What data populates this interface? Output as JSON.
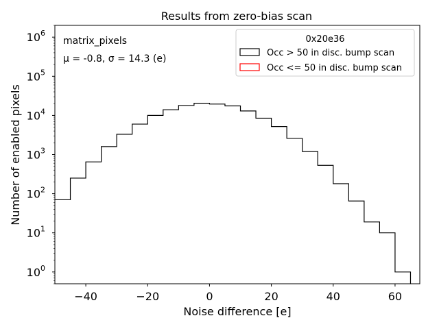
{
  "chart_data": {
    "type": "histogram",
    "title": "Results from zero-bias scan",
    "xlabel": "Noise difference [e]",
    "ylabel": "Number of enabled pixels",
    "xlim": [
      -50,
      68
    ],
    "ylim": [
      0.5,
      2000000
    ],
    "yscale": "log",
    "xticks": [
      -40,
      -20,
      0,
      20,
      40,
      60
    ],
    "xtick_labels": [
      "−40",
      "−20",
      "0",
      "20",
      "40",
      "60"
    ],
    "yticks": [
      {
        "value": 1,
        "base": "10",
        "exp": "0"
      },
      {
        "value": 10,
        "base": "10",
        "exp": "1"
      },
      {
        "value": 100,
        "base": "10",
        "exp": "2"
      },
      {
        "value": 1000,
        "base": "10",
        "exp": "3"
      },
      {
        "value": 10000,
        "base": "10",
        "exp": "4"
      },
      {
        "value": 100000,
        "base": "10",
        "exp": "5"
      },
      {
        "value": 1000000,
        "base": "10",
        "exp": "6"
      }
    ],
    "bin_edges": [
      -50,
      -45,
      -40,
      -35,
      -30,
      -25,
      -20,
      -15,
      -10,
      -5,
      0,
      5,
      10,
      15,
      20,
      25,
      30,
      35,
      40,
      45,
      50,
      55,
      60,
      65
    ],
    "series": [
      {
        "name": "Occ > 50 in disc. bump scan",
        "color": "#000000",
        "values": [
          70,
          250,
          650,
          1600,
          3300,
          6000,
          10000,
          14000,
          18000,
          20500,
          19500,
          17500,
          13000,
          8500,
          5200,
          2600,
          1200,
          530,
          180,
          65,
          19,
          10,
          1
        ]
      },
      {
        "name": "Occ <= 50 in disc. bump scan",
        "color": "#ff0000",
        "values": []
      }
    ],
    "legend": {
      "title": "0x20e36",
      "position": "top-right"
    },
    "annotations": [
      {
        "text": "matrix_pixels",
        "position": "top-left"
      },
      {
        "text": "μ = -0.8, σ = 14.3 (e)",
        "position": "top-left"
      }
    ]
  }
}
